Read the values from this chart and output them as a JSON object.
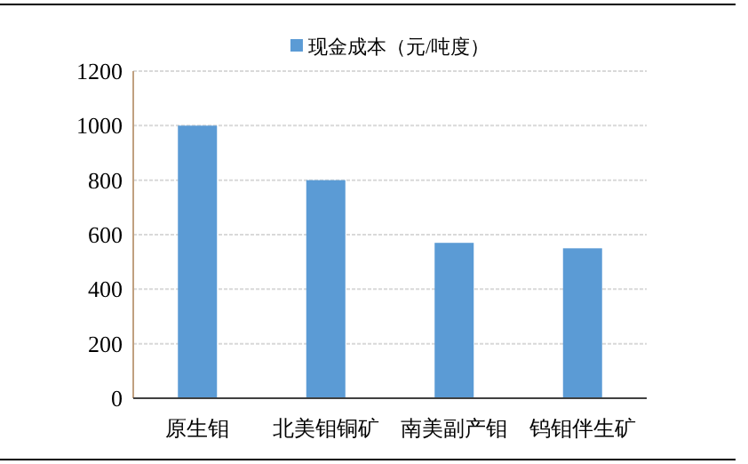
{
  "chart_data": {
    "type": "bar",
    "categories": [
      "原生钼",
      "北美钼铜矿",
      "南美副产钼",
      "钨钼伴生矿"
    ],
    "series": [
      {
        "name": "现金成本（元/吨度）",
        "color": "#5b9bd5",
        "values": [
          1000,
          800,
          570,
          550
        ]
      }
    ],
    "ylim": [
      0,
      1200
    ],
    "yticks": [
      0,
      200,
      400,
      600,
      800,
      1000,
      1200
    ],
    "grid": "y",
    "legend": "top"
  }
}
